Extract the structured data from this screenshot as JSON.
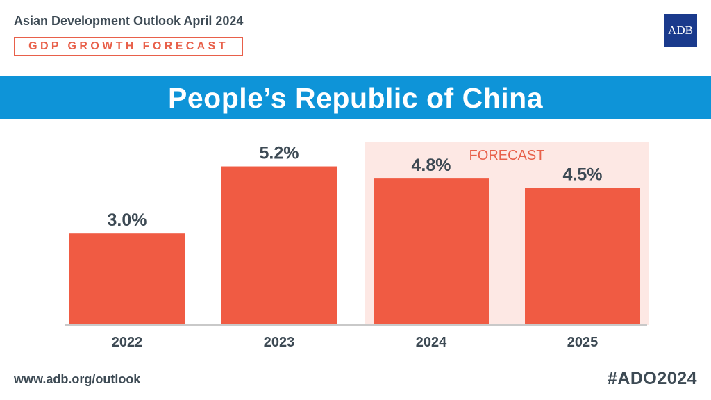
{
  "header": {
    "subtitle": "Asian Development Outlook April 2024",
    "badge": "GDP GROWTH FORECAST",
    "logo_text": "ADB"
  },
  "banner": {
    "title": "People’s Republic of China"
  },
  "footer": {
    "url": "www.adb.org/outlook",
    "hashtag": "#ADO2024"
  },
  "colors": {
    "bar": "#f05b43",
    "forecast_bg": "#fde8e4",
    "forecast_label": "#e8604a",
    "banner": "#0e94d8",
    "text": "#3d4a54",
    "logo": "#1a3a8c"
  },
  "chart_data": {
    "type": "bar",
    "categories": [
      "2022",
      "2023",
      "2024",
      "2025"
    ],
    "values": [
      3.0,
      5.2,
      4.8,
      4.5
    ],
    "labels": [
      "3.0%",
      "5.2%",
      "4.8%",
      "4.5%"
    ],
    "forecast_categories": [
      "2024",
      "2025"
    ],
    "forecast_label": "FORECAST",
    "title": "",
    "xlabel": "",
    "ylabel": "",
    "ylim": [
      0,
      6.1
    ],
    "grid": false
  }
}
